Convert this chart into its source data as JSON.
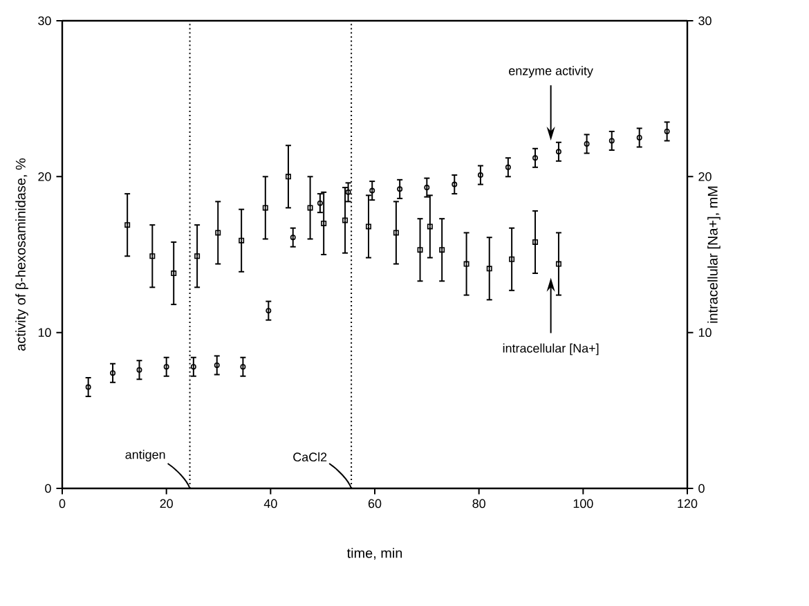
{
  "chart_data": {
    "type": "scatter",
    "xlabel": "time, min",
    "ylabel": "activity of β-hexosaminidase, %",
    "y2label": "intracellular [Na+], mM",
    "xlim": [
      0,
      120
    ],
    "xticks": [
      0,
      20,
      40,
      60,
      80,
      100,
      120
    ],
    "ylim": [
      0,
      30
    ],
    "yticks": [
      0,
      10,
      20,
      30
    ],
    "y2lim": [
      0,
      30
    ],
    "y2ticks": [
      0,
      10,
      20,
      30
    ],
    "series": [
      {
        "color": "#000000",
        "marker": "circle",
        "x": [
          5,
          9.7,
          14.8,
          20,
          25.2,
          29.7,
          34.7,
          39.6,
          44.3,
          49.5,
          54.9,
          59.5,
          64.8,
          70,
          75.3,
          80.3,
          85.6,
          90.8,
          95.3,
          100.7,
          105.5,
          110.8,
          116.1
        ],
        "values": [
          6.5,
          7.4,
          7.6,
          7.8,
          7.8,
          7.9,
          7.8,
          11.4,
          16.1,
          18.3,
          19.0,
          19.1,
          19.2,
          19.3,
          19.5,
          20.1,
          20.6,
          21.2,
          21.6,
          22.1,
          22.3,
          22.5,
          22.9
        ],
        "errors": [
          0.6,
          0.6,
          0.6,
          0.6,
          0.6,
          0.6,
          0.6,
          0.6,
          0.6,
          0.6,
          0.6,
          0.6,
          0.6,
          0.6,
          0.6,
          0.6,
          0.6,
          0.6,
          0.6,
          0.6,
          0.6,
          0.6,
          0.6
        ]
      },
      {
        "color": "#000000",
        "marker": "square",
        "axis": "y2",
        "x": [
          12.5,
          17.3,
          21.4,
          25.9,
          29.9,
          34.4,
          39,
          43.4,
          47.6,
          50.2,
          54.3,
          58.8,
          64.1,
          68.7,
          70.6,
          72.9,
          77.6,
          82,
          86.3,
          90.8,
          95.3
        ],
        "values": [
          16.9,
          14.9,
          13.8,
          14.9,
          16.4,
          15.9,
          18,
          20,
          18,
          17,
          17.2,
          16.8,
          16.4,
          15.3,
          16.8,
          15.3,
          14.4,
          14.1,
          14.7,
          15.8,
          14.4
        ],
        "errors": [
          2,
          2,
          2,
          2,
          2,
          2,
          2,
          2,
          2,
          2,
          2.1,
          2,
          2,
          2,
          2,
          2,
          2,
          2,
          2,
          2,
          2
        ]
      }
    ],
    "ref_lines": [
      {
        "axis": "x",
        "value": 24.5,
        "label": "antigen",
        "line_style": "dotted"
      },
      {
        "axis": "x",
        "value": 55.5,
        "label": "CaCl2",
        "line_style": "dotted"
      }
    ],
    "annotations": [
      "enzyme activity",
      "intracellular [Na+]"
    ]
  }
}
